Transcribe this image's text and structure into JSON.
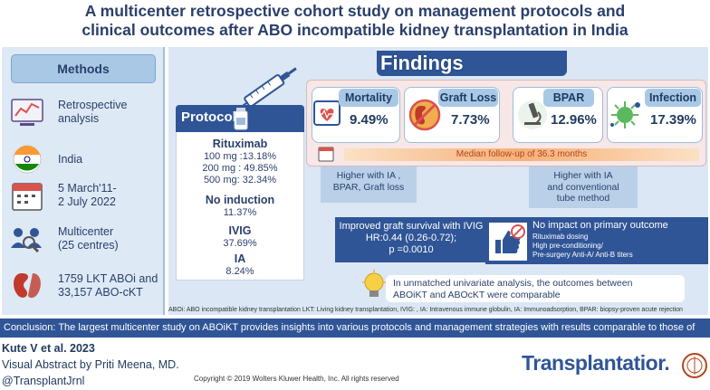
{
  "title": {
    "line1": "A multicenter retrospective cohort study on management protocols and",
    "line2": "clinical outcomes after ABO incompatible kidney transplantation in India"
  },
  "methods": {
    "header": "Methods",
    "items": [
      {
        "icon": "chart-report-icon",
        "text1": "Retrospective",
        "text2": "analysis"
      },
      {
        "icon": "india-flag-icon",
        "text1": "India",
        "text2": ""
      },
      {
        "icon": "calendar-icon",
        "text1": "5 March'11-",
        "text2": "2 July 2022"
      },
      {
        "icon": "people-search-icon",
        "text1": "Multicenter",
        "text2": "(25 centres)"
      },
      {
        "icon": "kidney-icon",
        "text1": "1759 LKT ABOi  and",
        "text2": "33,157 ABO-cKT"
      }
    ]
  },
  "findings": {
    "title": "Findings",
    "protocol": {
      "header": "Protocol",
      "rituximab": {
        "label": "Rituximab",
        "doses": [
          "100 mg :13.18%",
          "200 mg : 49.85%",
          "500 mg: 32.34%"
        ]
      },
      "no_induction": {
        "label": "No induction",
        "value": "11.37%"
      },
      "ivig": {
        "label": "IVIG",
        "value": "37.69%"
      },
      "ia": {
        "label": "IA",
        "value": "8.24%"
      }
    },
    "outcomes": [
      {
        "label": "Mortality",
        "value": "9.49%",
        "icon": "heart-monitor-icon"
      },
      {
        "label": "Graft Loss",
        "value": "7.73%",
        "icon": "kidney-cross-icon"
      },
      {
        "label": "BPAR",
        "value": "12.96%",
        "icon": "microscope-icon"
      },
      {
        "label": "Infection",
        "value": "17.39%",
        "icon": "virus-icon"
      }
    ],
    "follow_up": "Median follow-up of 36.3 months",
    "note_left": {
      "line1": "Higher with IA ,",
      "line2": "BPAR, Graft loss"
    },
    "note_right": {
      "line1": "Higher with IA",
      "line2": "and conventional",
      "line3": "tube method"
    },
    "ivig_box": {
      "line1": "Improved graft survival with IVIG",
      "line2": "HR:0.44 (0.26-0.72);",
      "line3": "p =0.0010"
    },
    "impact_box": {
      "header": "No impact on primary outcome",
      "line1": "Rituximab dosing",
      "line2": "High pre-conditioning/",
      "line3": "Pre-surgery Anti-A/ Anti-B titers"
    },
    "unmatched": {
      "line1": "In unmatched univariate analysis, the outcomes between",
      "line2": "ABOiKT and ABOcKT were comparable"
    },
    "abbreviations": "ABOi: ABO incompatible kidney transplantation LKT: Living kidney transplantation, IVIG: ,  IA: Intravenous immune globulin, IA: Immunoadsorption, BPAR: biopsy-proven acute rejection"
  },
  "conclusion": "Conclusion: The largest multicenter study on ABOiKT provides insights into various protocols and management strategies with results comparable to those of ABOcKT",
  "footer": {
    "author": "Kute V et al. 2023",
    "abstract_by": "Visual Abstract by Priti Meena, MD.",
    "handle": "@TransplantJrnl",
    "copyright": "Copyright © 2019  Wolters Kluwer Health, Inc. All rights reserved",
    "brand": "Transplantatior."
  },
  "colors": {
    "navy": "#2f5597",
    "light_blue": "#dde9f5",
    "pink": "#f7e7e7",
    "orange": "#b4451a"
  }
}
